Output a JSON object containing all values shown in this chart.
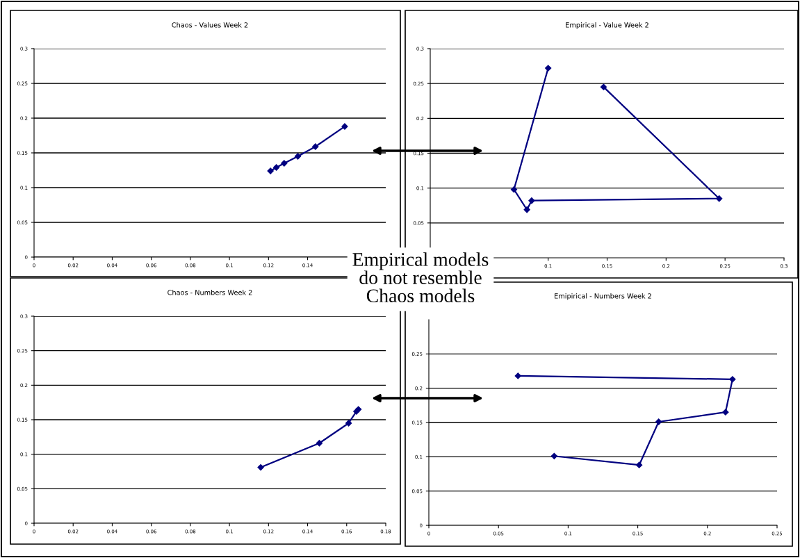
{
  "chart_data": [
    {
      "type": "line",
      "title": "Chaos - Values Week 2",
      "color": "#000080",
      "marker": "diamond",
      "grid": "y",
      "x": [
        0.121,
        0.124,
        0.128,
        0.135,
        0.144,
        0.159
      ],
      "values": [
        0.124,
        0.129,
        0.135,
        0.145,
        0.159,
        0.188
      ],
      "xlim": [
        0,
        0.18
      ],
      "xticks": [
        0,
        0.02,
        0.04,
        0.06,
        0.08,
        0.1,
        0.12,
        0.14
      ],
      "ylim": [
        0,
        0.3
      ],
      "yticks": [
        0,
        0.05,
        0.1,
        0.15,
        0.2,
        0.25,
        0.3
      ],
      "annotations": [
        "Empirical models\ndo not resemble\nChaos models"
      ]
    },
    {
      "type": "line",
      "title": "Empirical - Value Week 2",
      "color": "#000080",
      "marker": "diamond",
      "grid": "y",
      "x": [
        0.1,
        0.071,
        0.082,
        0.086,
        0.245,
        0.147
      ],
      "values": [
        0.272,
        0.098,
        0.069,
        0.082,
        0.085,
        0.245
      ],
      "xlim": [
        0,
        0.3
      ],
      "xticks": [
        0.1,
        0.15,
        0.2,
        0.25,
        0.3
      ],
      "ylim": [
        0,
        0.3
      ],
      "yticks": [
        0.05,
        0.1,
        0.15,
        0.2,
        0.25,
        0.3
      ]
    },
    {
      "type": "line",
      "title": "Chaos - Numbers Week 2",
      "color": "#000080",
      "marker": "diamond",
      "grid": "y",
      "x": [
        0.116,
        0.146,
        0.161,
        0.165,
        0.166
      ],
      "values": [
        0.081,
        0.116,
        0.145,
        0.162,
        0.165
      ],
      "xlim": [
        0,
        0.18
      ],
      "xticks": [
        0,
        0.02,
        0.04,
        0.06,
        0.08,
        0.1,
        0.12,
        0.14,
        0.16,
        0.18
      ],
      "ylim": [
        0,
        0.3
      ],
      "yticks": [
        0,
        0.05,
        0.1,
        0.15,
        0.2,
        0.25,
        0.3
      ]
    },
    {
      "type": "line",
      "title": "Emipirical - Numbers Week 2",
      "color": "#000080",
      "marker": "diamond",
      "grid": "y",
      "x": [
        0.064,
        0.218,
        0.213,
        0.165,
        0.151,
        0.09
      ],
      "values": [
        0.218,
        0.213,
        0.165,
        0.151,
        0.088,
        0.101
      ],
      "xlim": [
        0,
        0.25
      ],
      "xticks": [
        0,
        0.05,
        0.1,
        0.15,
        0.2,
        0.25
      ],
      "ylim": [
        0,
        0.3
      ],
      "yticks": [
        0,
        0.05,
        0.1,
        0.15,
        0.2,
        0.25
      ]
    }
  ]
}
